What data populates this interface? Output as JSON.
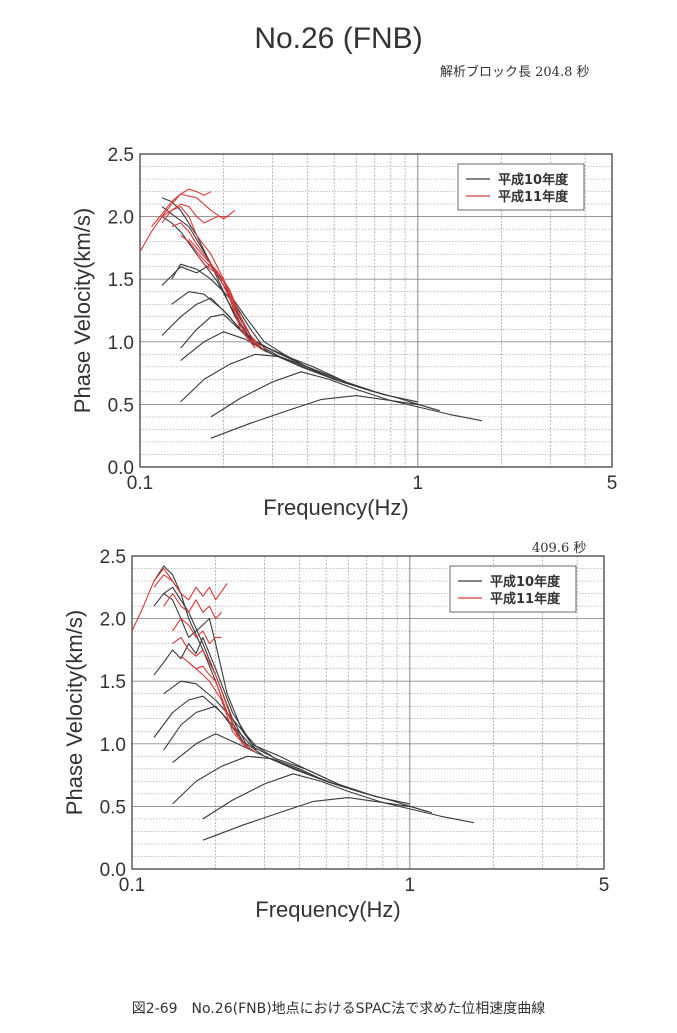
{
  "title": "No.26 (FNB)",
  "caption": "図2-69　No.26(FNB)地点におけるSPAC法で求めた位相速度曲線",
  "colors": {
    "black_series": "#3a3a3a",
    "red_series": "#d63a3a",
    "grid": "#8a8a8a"
  },
  "chart_data": [
    {
      "type": "line",
      "annotation": "解析ブロック長 204.8 秒",
      "xlabel": "Frequency(Hz)",
      "ylabel": "Phase Velocity(km/s)",
      "x_scale": "log",
      "xlim": [
        0.1,
        5
      ],
      "ylim": [
        0,
        2.5
      ],
      "x_tick_labels": [
        "0.1",
        "1",
        "5"
      ],
      "y_tick_labels": [
        "0.0",
        "0.5",
        "1.0",
        "1.5",
        "2.0",
        "2.5"
      ],
      "grid": true,
      "legend": {
        "position": "top-right",
        "entries": [
          "平成10年度",
          "平成11年度"
        ]
      },
      "series": [
        {
          "name": "平成10年度",
          "color": "#3a3a3a",
          "x": [
            0.12,
            0.13,
            0.14,
            0.16,
            0.18,
            0.2,
            0.22,
            0.25
          ],
          "y": [
            2.15,
            2.12,
            2.05,
            1.85,
            1.62,
            1.4,
            1.2,
            1.0
          ]
        },
        {
          "name": "",
          "color": "#3a3a3a",
          "x": [
            0.12,
            0.13,
            0.15,
            0.17,
            0.2,
            0.23,
            0.26
          ],
          "y": [
            2.08,
            2.02,
            1.92,
            1.72,
            1.45,
            1.18,
            0.98
          ]
        },
        {
          "name": "",
          "color": "#3a3a3a",
          "x": [
            0.12,
            0.13,
            0.14,
            0.16,
            0.19,
            0.22,
            0.25,
            0.28
          ],
          "y": [
            2.0,
            1.95,
            1.88,
            1.7,
            1.48,
            1.22,
            1.02,
            0.93
          ]
        },
        {
          "name": "",
          "color": "#3a3a3a",
          "x": [
            0.12,
            0.14,
            0.16,
            0.18,
            0.2,
            0.24,
            0.28,
            0.33,
            0.4,
            0.5
          ],
          "y": [
            1.45,
            1.6,
            1.55,
            1.62,
            1.45,
            1.2,
            1.0,
            0.9,
            0.8,
            0.7
          ]
        },
        {
          "name": "",
          "color": "#3a3a3a",
          "x": [
            0.13,
            0.14,
            0.16,
            0.18,
            0.2,
            0.22,
            0.25,
            0.28,
            0.32
          ],
          "y": [
            1.5,
            1.62,
            1.58,
            1.5,
            1.4,
            1.3,
            1.1,
            0.95,
            0.88
          ]
        },
        {
          "name": "",
          "color": "#3a3a3a",
          "x": [
            0.13,
            0.15,
            0.17,
            0.2,
            0.23,
            0.27,
            0.32,
            0.4,
            0.55
          ],
          "y": [
            1.3,
            1.4,
            1.38,
            1.25,
            1.1,
            0.98,
            0.9,
            0.8,
            0.68
          ]
        },
        {
          "name": "",
          "color": "#3a3a3a",
          "x": [
            0.12,
            0.14,
            0.16,
            0.18,
            0.21,
            0.25,
            0.3,
            0.38,
            0.5,
            0.7
          ],
          "y": [
            1.05,
            1.2,
            1.3,
            1.35,
            1.2,
            1.0,
            0.9,
            0.8,
            0.7,
            0.6
          ]
        },
        {
          "name": "",
          "color": "#3a3a3a",
          "x": [
            0.14,
            0.16,
            0.18,
            0.2,
            0.24,
            0.29,
            0.35,
            0.42,
            0.55,
            0.75
          ],
          "y": [
            0.95,
            1.1,
            1.2,
            1.22,
            1.05,
            0.95,
            0.87,
            0.8,
            0.68,
            0.58
          ]
        },
        {
          "name": "",
          "color": "#3a3a3a",
          "x": [
            0.14,
            0.17,
            0.2,
            0.24,
            0.28,
            0.34,
            0.42,
            0.55,
            0.75,
            1.0
          ],
          "y": [
            0.85,
            1.0,
            1.08,
            1.02,
            0.93,
            0.85,
            0.77,
            0.67,
            0.58,
            0.52
          ]
        },
        {
          "name": "",
          "color": "#3a3a3a",
          "x": [
            0.14,
            0.17,
            0.21,
            0.26,
            0.32,
            0.4,
            0.5,
            0.65,
            0.85,
            1.15
          ],
          "y": [
            0.52,
            0.7,
            0.82,
            0.9,
            0.88,
            0.8,
            0.7,
            0.62,
            0.55,
            0.46
          ]
        },
        {
          "name": "",
          "color": "#3a3a3a",
          "x": [
            0.18,
            0.23,
            0.3,
            0.38,
            0.48,
            0.6,
            0.8,
            1.0,
            1.3,
            1.7
          ],
          "y": [
            0.4,
            0.55,
            0.68,
            0.76,
            0.7,
            0.62,
            0.53,
            0.48,
            0.42,
            0.37
          ]
        },
        {
          "name": "",
          "color": "#3a3a3a",
          "x": [
            0.18,
            0.25,
            0.35,
            0.45,
            0.6,
            0.8,
            1.0,
            1.2
          ],
          "y": [
            0.23,
            0.35,
            0.46,
            0.54,
            0.57,
            0.53,
            0.5,
            0.45
          ]
        },
        {
          "name": "平成11年度",
          "color": "#d63a3a",
          "x": [
            0.1,
            0.11,
            0.12,
            0.13,
            0.14,
            0.15,
            0.16,
            0.17,
            0.18
          ],
          "y": [
            1.72,
            1.88,
            2.0,
            2.1,
            2.18,
            2.22,
            2.2,
            2.17,
            2.2
          ]
        },
        {
          "name": "",
          "color": "#d63a3a",
          "x": [
            0.11,
            0.12,
            0.13,
            0.14,
            0.16,
            0.18,
            0.2,
            0.22
          ],
          "y": [
            1.92,
            2.02,
            2.12,
            2.18,
            2.15,
            2.05,
            1.98,
            2.05
          ]
        },
        {
          "name": "",
          "color": "#d63a3a",
          "x": [
            0.12,
            0.13,
            0.14,
            0.15,
            0.16,
            0.17,
            0.19,
            0.21
          ],
          "y": [
            1.95,
            2.05,
            2.1,
            2.08,
            2.0,
            1.95,
            2.0,
            2.0
          ]
        },
        {
          "name": "",
          "color": "#d63a3a",
          "x": [
            0.12,
            0.13,
            0.14,
            0.15,
            0.16,
            0.18,
            0.2,
            0.22,
            0.24,
            0.27
          ],
          "y": [
            2.0,
            2.05,
            2.08,
            2.0,
            1.85,
            1.7,
            1.5,
            1.25,
            1.05,
            0.95
          ]
        },
        {
          "name": "",
          "color": "#d63a3a",
          "x": [
            0.13,
            0.14,
            0.15,
            0.16,
            0.17,
            0.19,
            0.21,
            0.23,
            0.26
          ],
          "y": [
            1.92,
            1.95,
            1.88,
            1.78,
            1.7,
            1.55,
            1.35,
            1.1,
            0.95
          ]
        },
        {
          "name": "",
          "color": "#d63a3a",
          "x": [
            0.14,
            0.15,
            0.16,
            0.17,
            0.18,
            0.2,
            0.22,
            0.25,
            0.28
          ],
          "y": [
            1.85,
            1.8,
            1.72,
            1.65,
            1.6,
            1.48,
            1.28,
            1.05,
            0.93
          ]
        },
        {
          "name": "",
          "color": "#d63a3a",
          "x": [
            0.15,
            0.16,
            0.17,
            0.18,
            0.19,
            0.21,
            0.23,
            0.26
          ],
          "y": [
            1.82,
            1.75,
            1.68,
            1.62,
            1.56,
            1.42,
            1.2,
            0.98
          ]
        },
        {
          "name": "",
          "color": "#d63a3a",
          "x": [
            0.16,
            0.17,
            0.18,
            0.2,
            0.22,
            0.24,
            0.27
          ],
          "y": [
            1.7,
            1.62,
            1.58,
            1.5,
            1.3,
            1.1,
            0.96
          ]
        }
      ]
    },
    {
      "type": "line",
      "annotation": "409.6 秒",
      "xlabel": "Frequency(Hz)",
      "ylabel": "Phase Velocity(km/s)",
      "x_scale": "log",
      "xlim": [
        0.1,
        5
      ],
      "ylim": [
        0,
        2.5
      ],
      "x_tick_labels": [
        "0.1",
        "1",
        "5"
      ],
      "y_tick_labels": [
        "0.0",
        "0.5",
        "1.0",
        "1.5",
        "2.0",
        "2.5"
      ],
      "grid": true,
      "legend": {
        "position": "top-right",
        "entries": [
          "平成10年度",
          "平成11年度"
        ]
      },
      "series": [
        {
          "name": "平成10年度",
          "color": "#3a3a3a",
          "x": [
            0.12,
            0.13,
            0.14,
            0.15,
            0.16,
            0.18,
            0.2,
            0.22,
            0.25
          ],
          "y": [
            2.3,
            2.42,
            2.35,
            2.2,
            2.0,
            1.75,
            1.5,
            1.25,
            1.02
          ]
        },
        {
          "name": "",
          "color": "#3a3a3a",
          "x": [
            0.12,
            0.13,
            0.14,
            0.16,
            0.18,
            0.2,
            0.23,
            0.26
          ],
          "y": [
            2.1,
            2.2,
            2.25,
            2.05,
            1.8,
            1.55,
            1.2,
            0.98
          ]
        },
        {
          "name": "",
          "color": "#3a3a3a",
          "x": [
            0.13,
            0.14,
            0.15,
            0.16,
            0.17,
            0.18,
            0.19,
            0.2,
            0.22,
            0.25,
            0.28
          ],
          "y": [
            2.2,
            2.15,
            2.0,
            1.85,
            1.9,
            1.95,
            2.0,
            1.8,
            1.4,
            1.1,
            0.95
          ]
        },
        {
          "name": "",
          "color": "#3a3a3a",
          "x": [
            0.12,
            0.13,
            0.14,
            0.15,
            0.16,
            0.17,
            0.18,
            0.2,
            0.23,
            0.27,
            0.32
          ],
          "y": [
            1.55,
            1.65,
            1.75,
            1.68,
            1.8,
            1.72,
            1.85,
            1.6,
            1.25,
            1.0,
            0.9
          ]
        },
        {
          "name": "",
          "color": "#3a3a3a",
          "x": [
            0.13,
            0.15,
            0.17,
            0.2,
            0.24,
            0.28,
            0.34,
            0.42,
            0.55
          ],
          "y": [
            1.4,
            1.5,
            1.48,
            1.35,
            1.15,
            0.98,
            0.9,
            0.8,
            0.68
          ]
        },
        {
          "name": "",
          "color": "#3a3a3a",
          "x": [
            0.12,
            0.14,
            0.16,
            0.18,
            0.21,
            0.25,
            0.3,
            0.38,
            0.5,
            0.7
          ],
          "y": [
            1.05,
            1.25,
            1.35,
            1.38,
            1.25,
            1.02,
            0.9,
            0.8,
            0.7,
            0.6
          ]
        },
        {
          "name": "",
          "color": "#3a3a3a",
          "x": [
            0.13,
            0.15,
            0.17,
            0.2,
            0.23,
            0.27,
            0.33,
            0.42,
            0.55,
            0.75
          ],
          "y": [
            0.95,
            1.15,
            1.25,
            1.3,
            1.15,
            0.98,
            0.88,
            0.8,
            0.68,
            0.58
          ]
        },
        {
          "name": "",
          "color": "#3a3a3a",
          "x": [
            0.14,
            0.17,
            0.2,
            0.24,
            0.28,
            0.34,
            0.42,
            0.55,
            0.75,
            1.0
          ],
          "y": [
            0.85,
            1.0,
            1.08,
            1.0,
            0.93,
            0.85,
            0.77,
            0.67,
            0.58,
            0.52
          ]
        },
        {
          "name": "",
          "color": "#3a3a3a",
          "x": [
            0.14,
            0.17,
            0.21,
            0.26,
            0.32,
            0.4,
            0.5,
            0.65,
            0.85,
            1.15
          ],
          "y": [
            0.52,
            0.7,
            0.82,
            0.9,
            0.88,
            0.8,
            0.7,
            0.62,
            0.55,
            0.46
          ]
        },
        {
          "name": "",
          "color": "#3a3a3a",
          "x": [
            0.18,
            0.23,
            0.3,
            0.38,
            0.48,
            0.6,
            0.8,
            1.0,
            1.3,
            1.7
          ],
          "y": [
            0.4,
            0.55,
            0.68,
            0.76,
            0.7,
            0.62,
            0.53,
            0.48,
            0.42,
            0.37
          ]
        },
        {
          "name": "",
          "color": "#3a3a3a",
          "x": [
            0.18,
            0.25,
            0.35,
            0.45,
            0.6,
            0.8,
            1.0,
            1.2
          ],
          "y": [
            0.23,
            0.35,
            0.46,
            0.54,
            0.57,
            0.53,
            0.5,
            0.45
          ]
        },
        {
          "name": "平成11年度",
          "color": "#d63a3a",
          "x": [
            0.1,
            0.11,
            0.12,
            0.13,
            0.14,
            0.15
          ],
          "y": [
            1.9,
            2.1,
            2.3,
            2.4,
            2.3,
            2.2
          ]
        },
        {
          "name": "",
          "color": "#d63a3a",
          "x": [
            0.12,
            0.13,
            0.14,
            0.15,
            0.16,
            0.17,
            0.18,
            0.19,
            0.2,
            0.22
          ],
          "y": [
            2.25,
            2.35,
            2.3,
            2.2,
            2.15,
            2.25,
            2.18,
            2.25,
            2.15,
            2.28
          ]
        },
        {
          "name": "",
          "color": "#d63a3a",
          "x": [
            0.13,
            0.14,
            0.15,
            0.16,
            0.17,
            0.18,
            0.19,
            0.2,
            0.21
          ],
          "y": [
            2.1,
            2.2,
            2.1,
            2.05,
            2.15,
            2.05,
            2.1,
            2.0,
            2.05
          ]
        },
        {
          "name": "",
          "color": "#d63a3a",
          "x": [
            0.14,
            0.15,
            0.16,
            0.17,
            0.18,
            0.19,
            0.2,
            0.21
          ],
          "y": [
            1.9,
            2.0,
            1.95,
            1.85,
            1.9,
            1.8,
            1.85,
            1.85
          ]
        },
        {
          "name": "",
          "color": "#d63a3a",
          "x": [
            0.14,
            0.15,
            0.16,
            0.17,
            0.18,
            0.2,
            0.22,
            0.24,
            0.27
          ],
          "y": [
            1.8,
            1.85,
            1.75,
            1.7,
            1.75,
            1.55,
            1.3,
            1.05,
            0.95
          ]
        },
        {
          "name": "",
          "color": "#d63a3a",
          "x": [
            0.15,
            0.16,
            0.17,
            0.18,
            0.19,
            0.2,
            0.22,
            0.25,
            0.28
          ],
          "y": [
            1.7,
            1.65,
            1.6,
            1.62,
            1.55,
            1.5,
            1.25,
            1.0,
            0.93
          ]
        },
        {
          "name": "",
          "color": "#d63a3a",
          "x": [
            0.16,
            0.17,
            0.18,
            0.19,
            0.21,
            0.23,
            0.26
          ],
          "y": [
            1.65,
            1.6,
            1.55,
            1.5,
            1.35,
            1.1,
            0.96
          ]
        }
      ]
    }
  ]
}
